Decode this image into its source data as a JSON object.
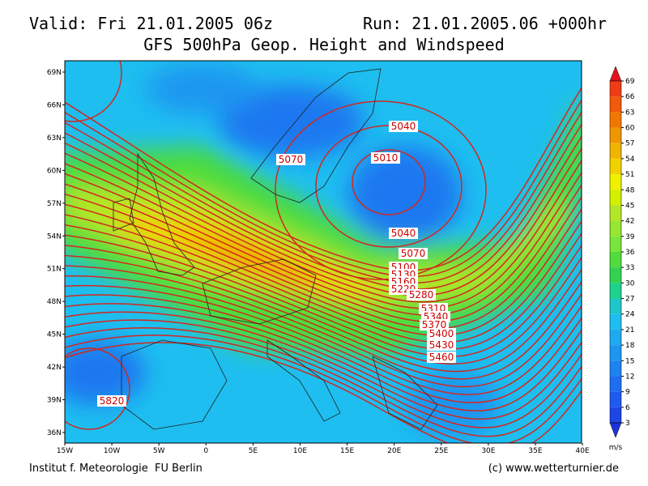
{
  "header": {
    "valid": "Valid: Fri 21.01.2005 06z",
    "run": "Run: 21.01.2005.06 +000hr",
    "title": "GFS 500hPa Geop. Height and Windspeed"
  },
  "map": {
    "latitude_labels": [
      "69N",
      "66N",
      "63N",
      "60N",
      "57N",
      "54N",
      "51N",
      "48N",
      "45N",
      "42N",
      "39N",
      "36N"
    ],
    "longitude_labels": [
      "15W",
      "10W",
      "5W",
      "0",
      "5E",
      "10E",
      "15E",
      "20E",
      "25E",
      "30E",
      "35E",
      "40E"
    ],
    "contour_labels": [
      5040,
      5010,
      5070,
      5040,
      5070,
      5100,
      5130,
      5160,
      5220,
      5280,
      5310,
      5340,
      5370,
      5400,
      5430,
      5460,
      5820
    ]
  },
  "colorbar": {
    "unit": "m/s",
    "labels": [
      69,
      66,
      63,
      60,
      57,
      54,
      51,
      48,
      45,
      42,
      39,
      36,
      33,
      30,
      27,
      24,
      21,
      18,
      15,
      12,
      9,
      6,
      3
    ]
  },
  "footer": {
    "institute": "Institut f. Meteorologie  FU Berlin",
    "copyright": "(c) www.wetterturnier.de"
  }
}
